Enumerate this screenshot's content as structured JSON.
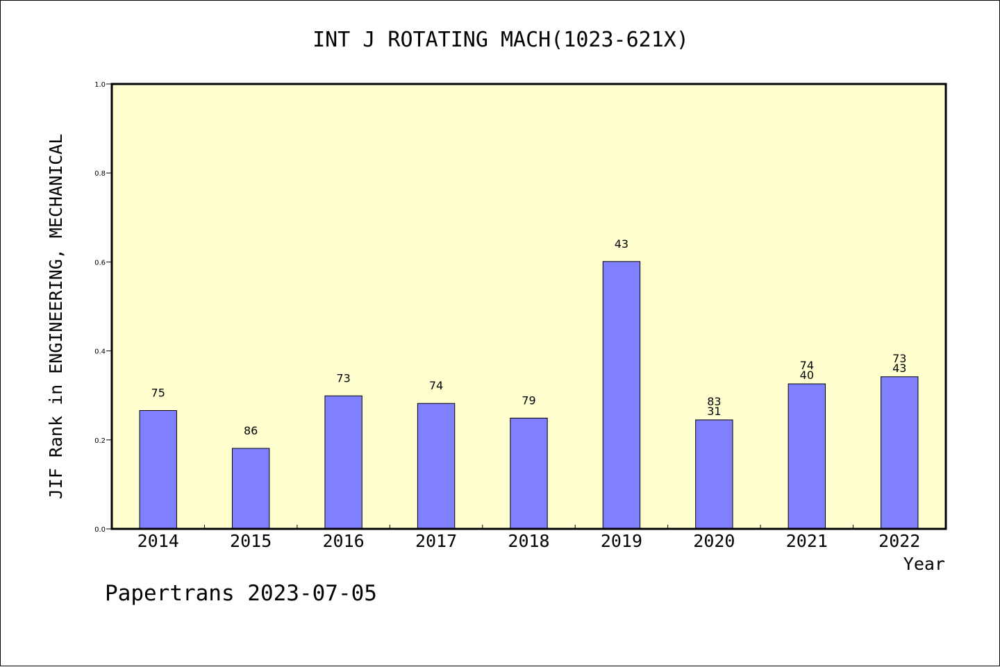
{
  "chart_data": {
    "type": "bar",
    "title": "INT J ROTATING MACH(1023-621X)",
    "xlabel": "Year",
    "ylabel": "JIF Rank in ENGINEERING, MECHANICAL",
    "ylim": [
      0,
      1.0
    ],
    "yticks": [
      "0.0",
      "0.2",
      "0.4",
      "0.6",
      "0.8",
      "1.0"
    ],
    "categories": [
      "2014",
      "2015",
      "2016",
      "2017",
      "2018",
      "2019",
      "2020",
      "2021",
      "2022"
    ],
    "values": [
      0.266,
      0.181,
      0.299,
      0.282,
      0.249,
      0.601,
      0.245,
      0.326,
      0.342
    ],
    "labels": [
      [
        "75"
      ],
      [
        "86"
      ],
      [
        "73"
      ],
      [
        "74"
      ],
      [
        "79"
      ],
      [
        "43"
      ],
      [
        "83",
        "31"
      ],
      [
        "74",
        "40"
      ],
      [
        "73",
        "43"
      ]
    ],
    "grid": false,
    "colors": {
      "plot_background": "#ffffd0",
      "bar_fill": "#8080ff",
      "bar_stroke": "#000000"
    }
  },
  "footer": {
    "text": "Papertrans 2023-07-05"
  }
}
